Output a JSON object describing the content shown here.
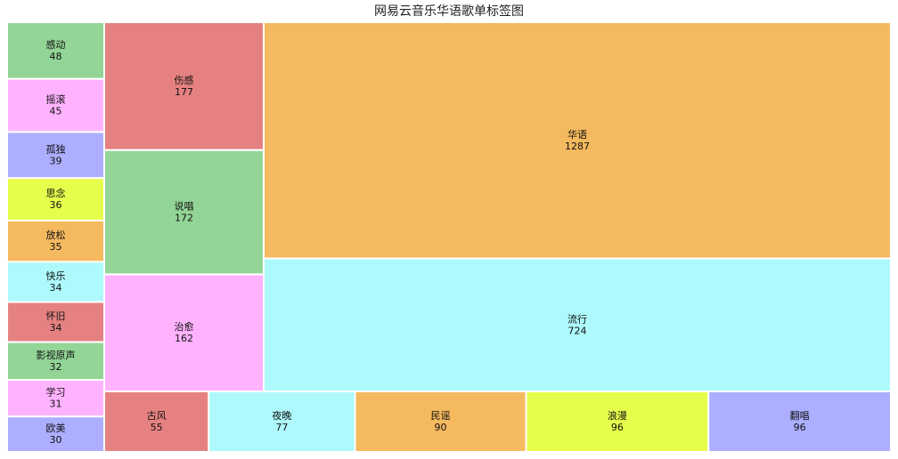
{
  "chart_data": {
    "type": "treemap",
    "title": "网易云音乐华语歌单标签图",
    "items": [
      {
        "label": "感动",
        "value": 48,
        "color": "#93d596"
      },
      {
        "label": "摇滚",
        "value": 45,
        "color": "#ffb3ff"
      },
      {
        "label": "孤独",
        "value": 39,
        "color": "#acaeff"
      },
      {
        "label": "思念",
        "value": 36,
        "color": "#e7fd4b"
      },
      {
        "label": "放松",
        "value": 35,
        "color": "#f5b95f"
      },
      {
        "label": "快乐",
        "value": 34,
        "color": "#adf9fb"
      },
      {
        "label": "怀旧",
        "value": 34,
        "color": "#e58281"
      },
      {
        "label": "影视原声",
        "value": 32,
        "color": "#93d596"
      },
      {
        "label": "学习",
        "value": 31,
        "color": "#ffb3ff"
      },
      {
        "label": "欧美",
        "value": 30,
        "color": "#acaeff"
      },
      {
        "label": "伤感",
        "value": 177,
        "color": "#e58281"
      },
      {
        "label": "说唱",
        "value": 172,
        "color": "#93d596"
      },
      {
        "label": "治愈",
        "value": 162,
        "color": "#ffb3ff"
      },
      {
        "label": "华语",
        "value": 1287,
        "color": "#f5b95f"
      },
      {
        "label": "流行",
        "value": 724,
        "color": "#adf9fb"
      },
      {
        "label": "古风",
        "value": 55,
        "color": "#e58281"
      },
      {
        "label": "夜晚",
        "value": 77,
        "color": "#adf9fb"
      },
      {
        "label": "民谣",
        "value": 90,
        "color": "#f5b95f"
      },
      {
        "label": "浪漫",
        "value": 96,
        "color": "#e7fd4b"
      },
      {
        "label": "翻唱",
        "value": 96,
        "color": "#acaeff"
      }
    ]
  }
}
